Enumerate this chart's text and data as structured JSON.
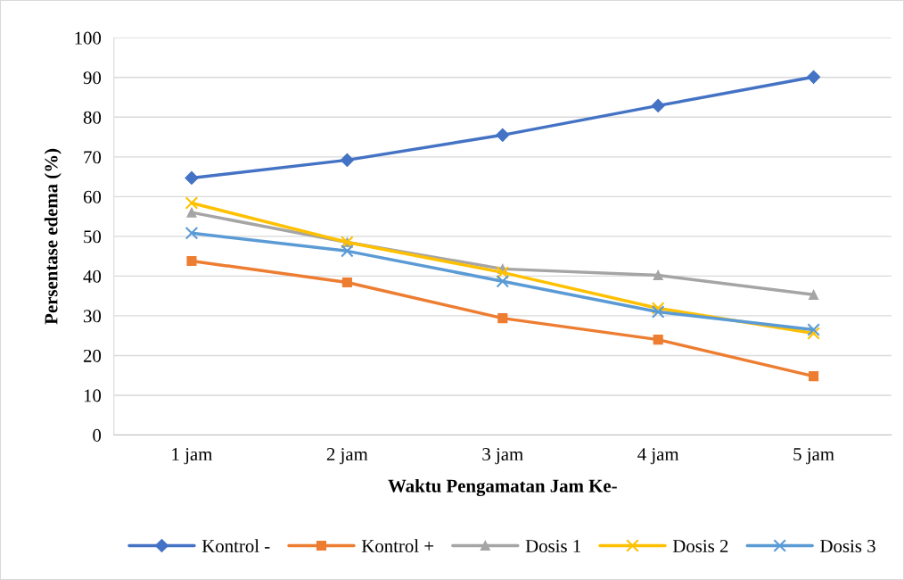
{
  "chart_data": {
    "type": "line",
    "xlabel": "Waktu Pengamatan Jam Ke-",
    "ylabel": "Persentase edema (%)",
    "categories": [
      "1 jam",
      "2 jam",
      "3 jam",
      "4 jam",
      "5 jam"
    ],
    "ylim": [
      0,
      100
    ],
    "yticks": [
      0,
      10,
      20,
      30,
      40,
      50,
      60,
      70,
      80,
      90,
      100
    ],
    "grid": "y",
    "legend": "bottom",
    "line_style": "solid",
    "series": [
      {
        "name": "Kontrol -",
        "color": "#4472c4",
        "marker": "diamond",
        "values": [
          64.7,
          69.2,
          75.5,
          82.9,
          90.1
        ]
      },
      {
        "name": "Kontrol +",
        "color": "#ed7d31",
        "marker": "square",
        "values": [
          43.8,
          38.4,
          29.4,
          24.0,
          14.8
        ]
      },
      {
        "name": "Dosis 1",
        "color": "#a5a5a5",
        "marker": "triangle",
        "values": [
          56.0,
          48.5,
          41.8,
          40.2,
          35.3
        ]
      },
      {
        "name": "Dosis 2",
        "color": "#ffc000",
        "marker": "cross",
        "values": [
          58.4,
          48.5,
          40.9,
          31.9,
          25.6
        ]
      },
      {
        "name": "Dosis 3",
        "color": "#5b9bd5",
        "marker": "cross",
        "values": [
          50.8,
          46.3,
          38.7,
          31.0,
          26.5
        ]
      }
    ]
  }
}
